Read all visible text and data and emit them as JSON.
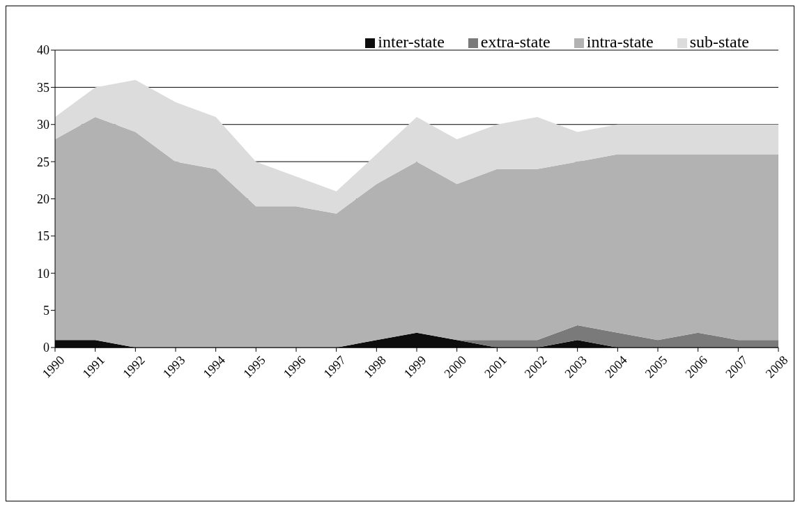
{
  "chart_data": {
    "type": "area",
    "stacked": true,
    "categories": [
      "1990",
      "1991",
      "1992",
      "1993",
      "1994",
      "1995",
      "1996",
      "1997",
      "1998",
      "1999",
      "2000",
      "2001",
      "2002",
      "2003",
      "2004",
      "2005",
      "2006",
      "2007",
      "2008"
    ],
    "series": [
      {
        "name": "inter-state",
        "color": "#0d0d0d",
        "values": [
          1,
          1,
          0,
          0,
          0,
          0,
          0,
          0,
          1,
          2,
          1,
          0,
          0,
          1,
          0,
          0,
          0,
          0,
          0
        ]
      },
      {
        "name": "extra-state",
        "color": "#7a7a7a",
        "values": [
          0,
          0,
          0,
          0,
          0,
          0,
          0,
          0,
          0,
          0,
          0,
          1,
          1,
          2,
          2,
          1,
          2,
          1,
          1
        ]
      },
      {
        "name": "intra-state",
        "color": "#b2b2b2",
        "values": [
          27,
          30,
          29,
          25,
          24,
          19,
          19,
          18,
          21,
          23,
          21,
          23,
          23,
          22,
          24,
          25,
          24,
          25,
          25
        ]
      },
      {
        "name": "sub-state",
        "color": "#dcdcdc",
        "values": [
          3,
          4,
          7,
          8,
          7,
          6,
          4,
          3,
          4,
          6,
          6,
          6,
          7,
          4,
          4,
          4,
          4,
          4,
          4
        ]
      }
    ],
    "ylim": [
      0,
      40
    ],
    "yticks": [
      0,
      5,
      10,
      15,
      20,
      25,
      30,
      35,
      40
    ],
    "grid": "y",
    "legend": "top right"
  }
}
